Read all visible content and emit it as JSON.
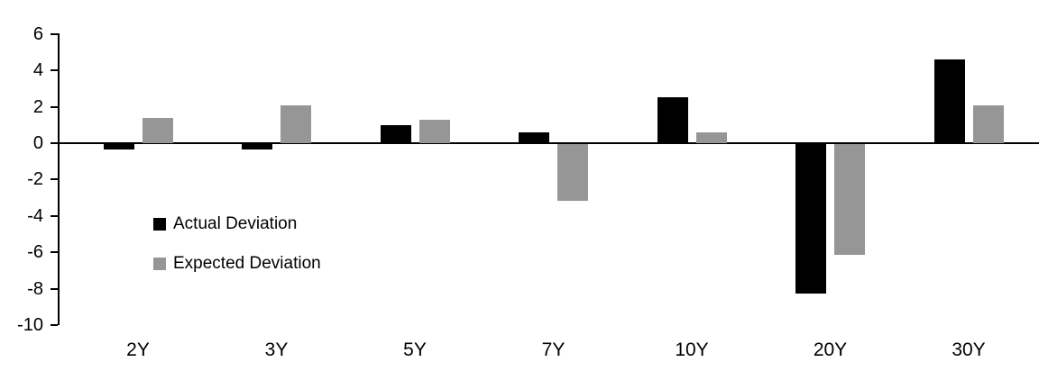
{
  "chart_data": {
    "type": "bar",
    "title": "",
    "xlabel": "",
    "ylabel": "",
    "categories": [
      "2Y",
      "3Y",
      "5Y",
      "7Y",
      "10Y",
      "20Y",
      "30Y"
    ],
    "series": [
      {
        "name": "Actual Deviation",
        "color": "#000000",
        "values": [
          -0.3,
          -0.3,
          1.0,
          0.6,
          2.5,
          -8.2,
          4.6
        ]
      },
      {
        "name": "Expected Deviation",
        "color": "#969696",
        "values": [
          1.4,
          2.1,
          1.3,
          -3.1,
          0.6,
          -6.1,
          2.1
        ]
      }
    ],
    "ylim": [
      -10,
      6
    ],
    "ytick_step": 2,
    "ytick_labels": [
      "6",
      "4",
      "2",
      "0",
      "-2",
      "-4",
      "-6",
      "-8",
      "-10"
    ],
    "grid": false,
    "legend_position": "inside-plot-left",
    "axis_color": "#000000",
    "background": "#ffffff"
  }
}
